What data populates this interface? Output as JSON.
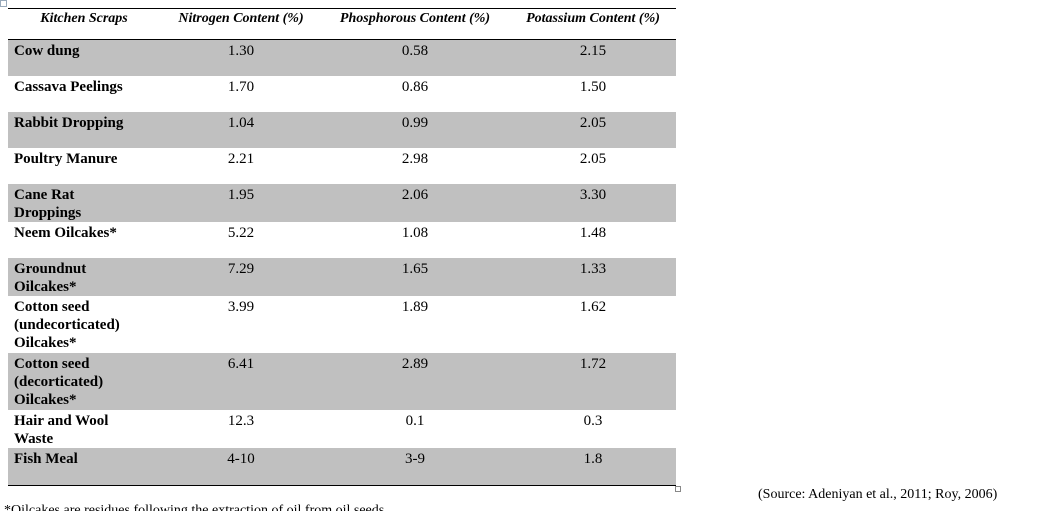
{
  "table": {
    "header": [
      "Kitchen Scraps",
      "Nitrogen Content (%)",
      "Phosphorous Content (%)",
      "Potassium Content (%)"
    ],
    "rows": [
      [
        "Cow dung",
        "1.30",
        "0.58",
        "2.15"
      ],
      [
        "Cassava Peelings",
        "1.70",
        "0.86",
        "1.50"
      ],
      [
        "Rabbit Dropping",
        "1.04",
        "0.99",
        "2.05"
      ],
      [
        "Poultry Manure",
        "2.21",
        "2.98",
        "2.05"
      ],
      [
        "Cane Rat Droppings",
        "1.95",
        "2.06",
        "3.30"
      ],
      [
        "Neem Oilcakes*",
        "5.22",
        "1.08",
        "1.48"
      ],
      [
        "Groundnut Oilcakes*",
        "7.29",
        "1.65",
        "1.33"
      ],
      [
        "Cotton seed (undecorticated) Oilcakes*",
        "3.99",
        "1.89",
        "1.62"
      ],
      [
        "Cotton seed (decorticated) Oilcakes*",
        "6.41",
        "2.89",
        "1.72"
      ],
      [
        "Hair and Wool Waste",
        "12.3",
        "0.1",
        "0.3"
      ],
      [
        "Fish Meal",
        "4-10",
        "3-9",
        "1.8"
      ]
    ]
  },
  "source": "(Source: Adeniyan et al., 2011; Roy, 2006)",
  "footnote": "*Oilcakes are residues following the extraction of oil from oil seeds"
}
